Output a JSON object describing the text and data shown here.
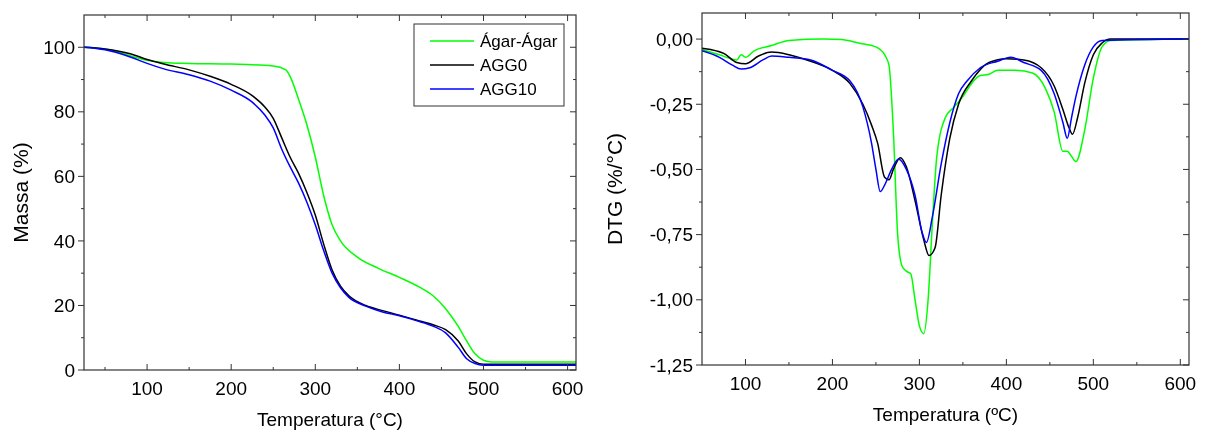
{
  "chart_data": [
    {
      "type": "line",
      "xlabel": "Temperatura (°C)",
      "ylabel": "Massa (%)",
      "xlim": [
        25,
        610
      ],
      "ylim": [
        0,
        110
      ],
      "xticks": [
        {
          "value": 50,
          "label": null
        },
        100,
        {
          "value": 150,
          "label": null
        },
        200,
        {
          "value": 250,
          "label": null
        },
        300,
        {
          "value": 350,
          "label": null
        },
        400,
        {
          "value": 450,
          "label": null
        },
        500,
        {
          "value": 550,
          "label": null
        },
        600
      ],
      "yticks": [
        0,
        {
          "value": 10,
          "label": null
        },
        20,
        {
          "value": 30,
          "label": null
        },
        40,
        {
          "value": 50,
          "label": null
        },
        60,
        {
          "value": 70,
          "label": null
        },
        80,
        {
          "value": 90,
          "label": null
        },
        100
      ],
      "legend": "top right",
      "grid": false,
      "line_style": "solid",
      "marker": "none",
      "series": [
        {
          "name": "Ágar-Ágar",
          "color": "#00ff00",
          "x": [
            25,
            50,
            100,
            120,
            150,
            200,
            250,
            265,
            270,
            280,
            290,
            300,
            310,
            320,
            330,
            350,
            375,
            400,
            425,
            440,
            455,
            470,
            480,
            490,
            500,
            510,
            610
          ],
          "values": [
            100,
            99.5,
            96,
            95.3,
            95,
            94.8,
            94.2,
            93,
            91,
            84,
            76,
            66,
            54,
            45,
            40,
            35,
            31.5,
            28.7,
            25.5,
            23,
            19,
            13.5,
            9,
            5,
            3,
            2.5,
            2.5
          ]
        },
        {
          "name": "AGG0",
          "color": "#000000",
          "x": [
            25,
            50,
            80,
            100,
            120,
            150,
            175,
            200,
            225,
            240,
            250,
            260,
            270,
            280,
            290,
            300,
            310,
            320,
            330,
            340,
            360,
            380,
            400,
            420,
            440,
            455,
            470,
            480,
            490,
            500,
            610
          ],
          "values": [
            100,
            99.5,
            98,
            96.2,
            94.8,
            93,
            91,
            88.5,
            85,
            81.5,
            78,
            72,
            66,
            61,
            55,
            48,
            39,
            31,
            26,
            23,
            20,
            18.4,
            17,
            15.5,
            14,
            12.5,
            9,
            5,
            2.5,
            1.8,
            1.8
          ]
        },
        {
          "name": "AGG10",
          "color": "#0000ff",
          "x": [
            25,
            50,
            80,
            100,
            120,
            150,
            175,
            200,
            225,
            240,
            250,
            260,
            270,
            280,
            290,
            300,
            310,
            320,
            330,
            340,
            360,
            380,
            400,
            420,
            440,
            455,
            470,
            480,
            490,
            500,
            610
          ],
          "values": [
            100,
            99.2,
            97,
            95,
            93.3,
            91.5,
            89.5,
            86.7,
            83,
            79,
            75,
            68.5,
            63,
            58,
            52,
            45,
            37,
            30,
            25.5,
            22.5,
            19.8,
            18,
            16.8,
            15.3,
            13.6,
            11.5,
            7,
            3.5,
            2,
            1.5,
            1.5
          ]
        }
      ]
    },
    {
      "type": "line",
      "xlabel": "Temperatura (ºC)",
      "ylabel": "DTG (%/°C)",
      "xlim": [
        50,
        610
      ],
      "ylim": [
        -1.25,
        0.1
      ],
      "xticks": [
        100,
        {
          "value": 150,
          "label": null
        },
        200,
        {
          "value": 250,
          "label": null
        },
        300,
        {
          "value": 350,
          "label": null
        },
        400,
        {
          "value": 450,
          "label": null
        },
        500,
        {
          "value": 550,
          "label": null
        },
        600
      ],
      "yticks": [
        {
          "value": -1.25,
          "label": "-1,25"
        },
        {
          "value": -1.125,
          "label": null
        },
        {
          "value": -1,
          "label": "-1,00"
        },
        {
          "value": -0.875,
          "label": null
        },
        {
          "value": -0.75,
          "label": "-0,75"
        },
        {
          "value": -0.625,
          "label": null
        },
        {
          "value": -0.5,
          "label": "-0,50"
        },
        {
          "value": -0.375,
          "label": null
        },
        {
          "value": -0.25,
          "label": "-0,25"
        },
        {
          "value": -0.125,
          "label": null
        },
        {
          "value": 0,
          "label": "0,00"
        }
      ],
      "legend": false,
      "grid": false,
      "line_style": "solid",
      "marker": "none",
      "series": [
        {
          "color": "#00ff00",
          "x": [
            50,
            70,
            90,
            95,
            100,
            110,
            130,
            150,
            190,
            210,
            230,
            250,
            260,
            265,
            270,
            275,
            280,
            285,
            290,
            295,
            300,
            305,
            310,
            315,
            320,
            330,
            340,
            350,
            360,
            370,
            380,
            390,
            410,
            430,
            445,
            455,
            465,
            470,
            475,
            480,
            490,
            500,
            510,
            520,
            610
          ],
          "values": [
            -0.04,
            -0.06,
            -0.08,
            -0.06,
            -0.07,
            -0.045,
            -0.025,
            -0.005,
            0,
            -0.002,
            -0.015,
            -0.03,
            -0.06,
            -0.1,
            -0.35,
            -0.75,
            -0.87,
            -0.89,
            -0.9,
            -1.0,
            -1.1,
            -1.13,
            -1.0,
            -0.7,
            -0.45,
            -0.3,
            -0.26,
            -0.22,
            -0.17,
            -0.14,
            -0.135,
            -0.12,
            -0.12,
            -0.13,
            -0.19,
            -0.28,
            -0.43,
            -0.43,
            -0.45,
            -0.47,
            -0.35,
            -0.15,
            -0.03,
            -0.005,
            0
          ]
        },
        {
          "color": "#000000",
          "x": [
            50,
            60,
            75,
            90,
            100,
            115,
            130,
            150,
            175,
            200,
            220,
            235,
            245,
            252,
            260,
            265,
            270,
            278,
            285,
            295,
            305,
            311,
            318,
            325,
            335,
            345,
            360,
            380,
            400,
            420,
            440,
            455,
            465,
            472,
            476,
            482,
            490,
            500,
            510,
            520,
            610
          ],
          "values": [
            -0.035,
            -0.04,
            -0.055,
            -0.09,
            -0.095,
            -0.065,
            -0.05,
            -0.06,
            -0.085,
            -0.12,
            -0.17,
            -0.25,
            -0.33,
            -0.4,
            -0.53,
            -0.54,
            -0.5,
            -0.455,
            -0.49,
            -0.62,
            -0.77,
            -0.83,
            -0.8,
            -0.6,
            -0.38,
            -0.25,
            -0.16,
            -0.09,
            -0.075,
            -0.08,
            -0.11,
            -0.18,
            -0.27,
            -0.34,
            -0.365,
            -0.3,
            -0.17,
            -0.06,
            -0.015,
            0,
            0
          ]
        },
        {
          "color": "#0000ff",
          "x": [
            50,
            70,
            85,
            95,
            105,
            120,
            130,
            150,
            175,
            200,
            220,
            235,
            245,
            250,
            255,
            260,
            268,
            276,
            285,
            295,
            303,
            308,
            315,
            325,
            335,
            345,
            355,
            370,
            390,
            405,
            420,
            440,
            455,
            465,
            470,
            475,
            480,
            490,
            500,
            510,
            610
          ],
          "values": [
            -0.045,
            -0.07,
            -0.1,
            -0.115,
            -0.11,
            -0.08,
            -0.065,
            -0.07,
            -0.08,
            -0.12,
            -0.16,
            -0.26,
            -0.4,
            -0.5,
            -0.585,
            -0.56,
            -0.5,
            -0.46,
            -0.5,
            -0.6,
            -0.74,
            -0.78,
            -0.68,
            -0.48,
            -0.32,
            -0.21,
            -0.16,
            -0.11,
            -0.085,
            -0.07,
            -0.09,
            -0.12,
            -0.21,
            -0.32,
            -0.38,
            -0.3,
            -0.22,
            -0.1,
            -0.03,
            -0.005,
            0
          ]
        }
      ]
    }
  ]
}
